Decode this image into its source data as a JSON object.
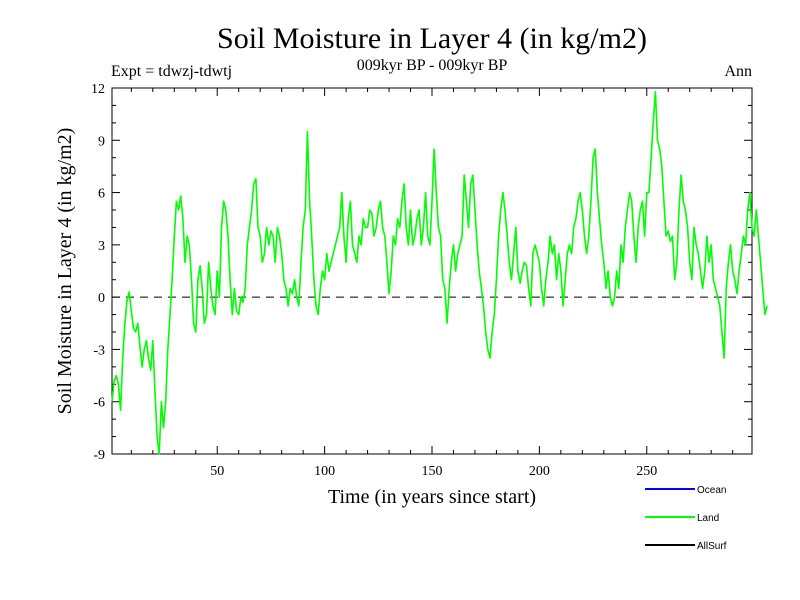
{
  "chart_data": {
    "type": "line",
    "title": "Soil Moisture in Layer 4 (in kg/m2)",
    "subtitle": "009kyr BP - 009kyr BP",
    "experiment_label": "Expt = tdwzj-tdwtj",
    "period_label": "Ann",
    "xlabel": "Time (in years since start)",
    "ylabel": "Soil Moisture in Layer 4 (in kg/m2)",
    "xlim": [
      1,
      299
    ],
    "ylim": [
      -9,
      12
    ],
    "x_ticks": [
      50,
      100,
      150,
      200,
      250
    ],
    "y_ticks": [
      -9,
      -6,
      -3,
      0,
      3,
      6,
      9,
      12
    ],
    "zero_line": true,
    "grid": false,
    "legend_position": "bottom-right",
    "series": [
      {
        "name": "Ocean",
        "color": "#0000ff",
        "values": []
      },
      {
        "name": "Land",
        "color": "#00ff00",
        "values": [
          -6.0,
          -4.8,
          -4.5,
          -5.0,
          -6.5,
          -3.5,
          -1.5,
          -0.2,
          0.3,
          -0.8,
          -1.8,
          -2.0,
          -1.5,
          -2.8,
          -4.0,
          -3.0,
          -2.5,
          -3.5,
          -4.2,
          -2.5,
          -5.5,
          -8.0,
          -9.0,
          -6.0,
          -7.5,
          -6.0,
          -3.0,
          -1.0,
          1.0,
          3.5,
          5.5,
          5.0,
          5.8,
          4.5,
          2.0,
          3.5,
          3.0,
          1.0,
          -1.5,
          -2.0,
          1.0,
          1.8,
          0.5,
          -1.5,
          -1.0,
          2.0,
          0.5,
          -0.5,
          -1.0,
          1.5,
          0.0,
          4.0,
          5.5,
          5.0,
          3.5,
          1.0,
          -1.0,
          0.5,
          -0.8,
          -1.0,
          0.0,
          -0.3,
          0.5,
          3.0,
          4.0,
          5.0,
          6.5,
          6.8,
          4.0,
          3.5,
          2.0,
          2.5,
          4.0,
          3.0,
          3.8,
          3.5,
          2.0,
          4.0,
          3.5,
          2.5,
          1.0,
          0.5,
          -0.5,
          0.5,
          0.2,
          1.0,
          0.0,
          -0.5,
          2.0,
          4.0,
          5.0,
          9.5,
          5.5,
          3.5,
          1.0,
          -0.5,
          -1.0,
          0.5,
          1.5,
          1.0,
          2.5,
          1.5,
          2.0,
          2.5,
          3.0,
          3.5,
          4.0,
          6.0,
          3.5,
          2.0,
          4.5,
          5.5,
          3.0,
          2.5,
          2.0,
          3.5,
          3.0,
          4.5,
          4.0,
          4.0,
          5.0,
          4.8,
          3.5,
          4.0,
          5.0,
          5.5,
          4.0,
          3.5,
          2.0,
          0.2,
          1.5,
          3.5,
          3.0,
          4.5,
          4.0,
          5.5,
          6.5,
          4.0,
          3.0,
          5.0,
          3.0,
          3.5,
          4.5,
          5.0,
          3.0,
          4.0,
          6.0,
          3.5,
          3.0,
          5.5,
          8.5,
          6.0,
          4.0,
          3.5,
          1.0,
          0.5,
          -1.5,
          0.5,
          2.0,
          3.0,
          1.5,
          2.5,
          3.0,
          3.5,
          7.0,
          5.5,
          4.0,
          6.5,
          7.0,
          5.0,
          3.0,
          1.5,
          0.5,
          -0.5,
          -2.0,
          -3.0,
          -3.5,
          -2.0,
          -1.0,
          1.0,
          3.5,
          5.0,
          6.0,
          5.0,
          3.5,
          2.0,
          1.0,
          2.5,
          4.0,
          1.5,
          0.8,
          1.5,
          2.0,
          1.8,
          0.5,
          -0.5,
          2.5,
          3.0,
          2.5,
          2.0,
          0.5,
          -0.5,
          1.0,
          2.0,
          3.5,
          2.5,
          3.0,
          1.0,
          2.5,
          1.5,
          -0.5,
          1.0,
          2.5,
          3.0,
          2.5,
          4.0,
          4.5,
          5.5,
          6.0,
          5.0,
          3.5,
          2.5,
          3.5,
          5.5,
          8.0,
          8.5,
          6.0,
          4.5,
          3.0,
          2.0,
          0.5,
          1.5,
          0.0,
          -0.5,
          0.0,
          1.5,
          0.5,
          3.0,
          2.0,
          4.0,
          5.0,
          6.0,
          5.5,
          3.5,
          2.0,
          4.0,
          5.0,
          5.5,
          3.5,
          6.0,
          6.0,
          8.0,
          10.0,
          11.8,
          9.0,
          8.5,
          7.5,
          5.5,
          3.5,
          3.8,
          3.2,
          3.5,
          1.0,
          2.0,
          5.0,
          7.0,
          5.5,
          5.0,
          4.0,
          2.0,
          1.0,
          4.0,
          3.0,
          2.5,
          1.5,
          0.5,
          1.5,
          3.5,
          2.0,
          3.0,
          1.0,
          0.5,
          0.0,
          -0.5,
          -2.0,
          -3.5,
          0.5,
          2.0,
          3.0,
          1.5,
          1.0,
          0.2,
          1.5,
          2.5,
          3.5,
          3.0,
          5.0,
          6.0,
          4.0,
          3.5,
          5.0,
          3.5,
          2.0,
          0.5,
          -1.0,
          -0.5
        ]
      },
      {
        "name": "AllSurf",
        "color": "#000000",
        "values": []
      }
    ]
  }
}
